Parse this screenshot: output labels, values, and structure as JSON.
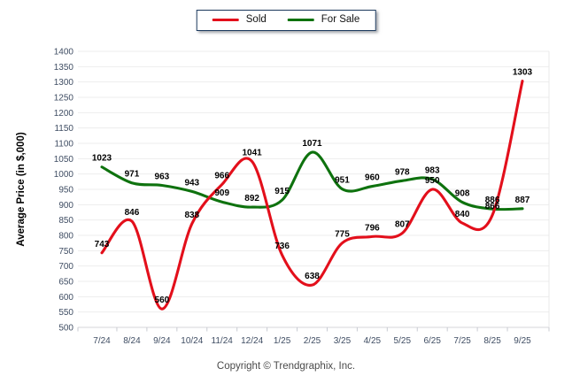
{
  "chart_data": {
    "type": "line",
    "title": "",
    "xlabel": "",
    "ylabel": "Average Price (in $,000)",
    "categories": [
      "7/24",
      "8/24",
      "9/24",
      "10/24",
      "11/24",
      "12/24",
      "1/25",
      "2/25",
      "3/25",
      "4/25",
      "5/25",
      "6/25",
      "7/25",
      "8/25",
      "9/25"
    ],
    "series": [
      {
        "name": "Sold",
        "color": "#e30f1b",
        "values": [
          743,
          846,
          560,
          838,
          966,
          1041,
          736,
          638,
          775,
          796,
          807,
          950,
          840,
          866,
          1303
        ]
      },
      {
        "name": "For Sale",
        "color": "#0e720e",
        "values": [
          1023,
          971,
          963,
          943,
          909,
          892,
          915,
          1071,
          951,
          960,
          978,
          983,
          908,
          886,
          887
        ]
      }
    ],
    "ylim": [
      500,
      1400
    ],
    "ytick_step": 50,
    "grid": true,
    "legend_position": "top-center",
    "data_labels": true
  },
  "footer": {
    "copyright": "Copyright © Trendgraphix, Inc."
  },
  "colors": {
    "grid_line": "#ededed",
    "axis_line": "#d5d5da",
    "tick_mark": "#c8cbd2",
    "tick_label": "#3f4d63",
    "data_label": "#000000",
    "plot_border_right": "#e8e8e8"
  }
}
